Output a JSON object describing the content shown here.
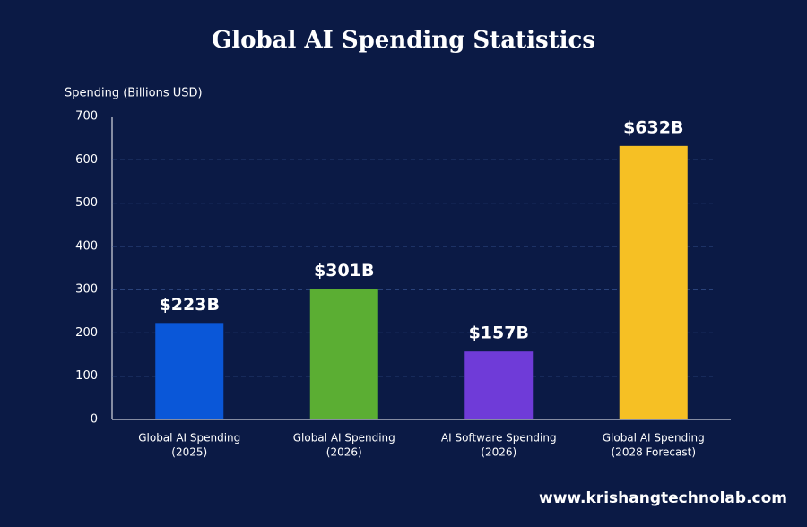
{
  "chart_data": {
    "type": "bar",
    "title": "Global AI Spending Statistics",
    "y_label": "Spending (Billions USD)",
    "categories": [
      [
        "Global AI Spending",
        "(2025)"
      ],
      [
        "Global AI Spending",
        "(2026)"
      ],
      [
        "AI Software Spending",
        "(2026)"
      ],
      [
        "Global AI Spending",
        "(2028 Forecast)"
      ]
    ],
    "values": [
      223,
      301,
      157,
      632
    ],
    "value_labels": [
      "$223B",
      "$301B",
      "$157B",
      "$632B"
    ],
    "colors": [
      "#0a57d8",
      "#5bae33",
      "#6f3bd8",
      "#f6c024"
    ],
    "ylim": [
      0,
      700
    ],
    "yticks": [
      0,
      100,
      200,
      300,
      400,
      500,
      600,
      700
    ],
    "grid": true,
    "footer": "www.krishangtechnolab.com"
  }
}
